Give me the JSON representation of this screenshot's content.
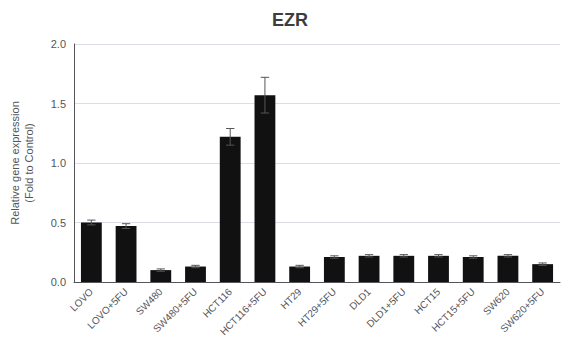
{
  "chart_data": {
    "type": "bar",
    "title": "EZR",
    "ylabel": "Relative gene expression\n(Fold to Control)",
    "categories": [
      "LOVO",
      "LOVO+5FU",
      "SW480",
      "SW480+5FU",
      "HCT116",
      "HCT116+5FU",
      "HT29",
      "HT29+5FU",
      "DLD1",
      "DLD1+5FU",
      "HCT15",
      "HCT15+5FU",
      "SW620",
      "SW620+5FU"
    ],
    "values": [
      0.5,
      0.47,
      0.1,
      0.13,
      1.22,
      1.57,
      0.13,
      0.21,
      0.22,
      0.22,
      0.22,
      0.21,
      0.22,
      0.15
    ],
    "errors": [
      0.02,
      0.02,
      0.01,
      0.01,
      0.07,
      0.15,
      0.01,
      0.01,
      0.01,
      0.01,
      0.01,
      0.01,
      0.01,
      0.01
    ],
    "color": "#111111",
    "ylim": [
      0,
      2.0
    ],
    "yticks": [
      {
        "value": 0,
        "label": "0.0"
      },
      0.5,
      {
        "value": 1,
        "label": "1.0"
      },
      1.5,
      {
        "value": 2,
        "label": "2.0"
      }
    ],
    "grid": true
  }
}
